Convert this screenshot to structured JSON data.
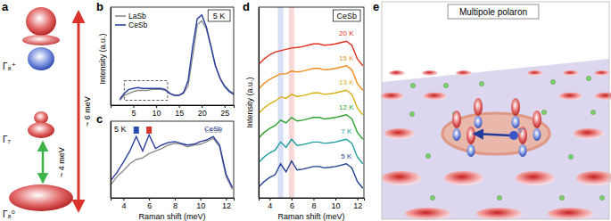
{
  "diagram_a": {
    "panel": "a",
    "levels": [
      "Γ₈⁺",
      "Γ₇",
      "Γ₈⁰"
    ],
    "arrows": [
      "~ 6 meV",
      "~ 4 meV"
    ]
  },
  "chart_data": [
    {
      "panel": "b",
      "type": "line",
      "title": "5 K",
      "y_label": "Intensity (a.u.)",
      "x": [
        2,
        3,
        4,
        5,
        6,
        7,
        8,
        9,
        10,
        11,
        12,
        13,
        14,
        15,
        16,
        17,
        18,
        19,
        20,
        21,
        22,
        23,
        24,
        25,
        26,
        27
      ],
      "series": [
        {
          "name": "LaSb",
          "color": "#8c8c8c",
          "values": [
            0.05,
            0.1,
            0.12,
            0.14,
            0.15,
            0.15,
            0.15,
            0.16,
            0.16,
            0.16,
            0.15,
            0.12,
            0.1,
            0.1,
            0.12,
            0.2,
            0.5,
            0.82,
            0.86,
            0.78,
            0.6,
            0.4,
            0.28,
            0.2,
            0.15,
            0.12
          ]
        },
        {
          "name": "CeSb",
          "color": "#2b3f9e",
          "values": [
            0.06,
            0.12,
            0.16,
            0.17,
            0.18,
            0.17,
            0.17,
            0.17,
            0.17,
            0.17,
            0.16,
            0.12,
            0.1,
            0.1,
            0.13,
            0.25,
            0.6,
            0.88,
            0.92,
            0.8,
            0.6,
            0.4,
            0.27,
            0.19,
            0.14,
            0.11
          ]
        }
      ],
      "xlim": [
        0,
        27
      ],
      "xticks": [
        5,
        10,
        15,
        20,
        25
      ],
      "ylim": [
        0,
        1
      ],
      "yticks": [],
      "tick_labels": "x",
      "legend": "upper left",
      "zoom_box": {
        "x": [
          3,
          12.5
        ],
        "y": [
          0.05,
          0.25
        ]
      }
    },
    {
      "panel": "c",
      "type": "line",
      "title": "5 K",
      "x_label": "Raman shift (meV)",
      "x": [
        3,
        3.5,
        4,
        4.5,
        5,
        5.5,
        6,
        6.5,
        7,
        7.5,
        8,
        8.5,
        9,
        9.5,
        10,
        10.5,
        11,
        11.5,
        12,
        12.5
      ],
      "series": [
        {
          "name": "LaSb",
          "color": "#8c8c8c",
          "values": [
            0.15,
            0.25,
            0.32,
            0.4,
            0.45,
            0.47,
            0.52,
            0.55,
            0.58,
            0.62,
            0.64,
            0.63,
            0.6,
            0.62,
            0.63,
            0.66,
            0.7,
            0.6,
            0.25,
            0.1
          ]
        },
        {
          "name": "CeSb",
          "color": "#2b3f9e",
          "values": [
            0.2,
            0.3,
            0.42,
            0.55,
            0.72,
            0.55,
            0.74,
            0.58,
            0.62,
            0.65,
            0.66,
            0.64,
            0.62,
            0.63,
            0.66,
            0.68,
            0.72,
            0.62,
            0.28,
            0.12
          ]
        }
      ],
      "xlim": [
        3,
        12.6
      ],
      "xticks": [
        4,
        6,
        8,
        10,
        12
      ],
      "ylim": [
        0,
        0.9
      ],
      "yticks": [],
      "tick_labels": "x",
      "peaks": {
        "x": [
          5,
          6
        ],
        "colors": [
          "#2b4fb0",
          "#d0392b"
        ]
      }
    },
    {
      "panel": "d",
      "type": "line",
      "title": "CeSb",
      "x_label": "Raman shift (meV)",
      "y_label": "Intensity (a.u.)",
      "x": [
        3,
        3.5,
        4,
        4.5,
        5,
        5.5,
        6,
        6.5,
        7,
        7.5,
        8,
        8.5,
        9,
        9.5,
        10,
        10.5,
        11,
        11.5,
        12,
        12.5
      ],
      "series": [
        {
          "name": "20 K",
          "color": "#e03020",
          "values": [
            4.9,
            5.1,
            5.25,
            5.35,
            5.4,
            5.45,
            5.5,
            5.52,
            5.55,
            5.6,
            5.65,
            5.65,
            5.6,
            5.62,
            5.65,
            5.7,
            5.75,
            5.6,
            5.1,
            4.85
          ]
        },
        {
          "name": "15 K",
          "color": "#f08c1e",
          "values": [
            4.0,
            4.2,
            4.35,
            4.45,
            4.55,
            4.55,
            4.65,
            4.62,
            4.65,
            4.7,
            4.75,
            4.75,
            4.7,
            4.72,
            4.75,
            4.8,
            4.85,
            4.7,
            4.2,
            3.95
          ]
        },
        {
          "name": "13 K",
          "color": "#d8b010",
          "values": [
            3.1,
            3.3,
            3.45,
            3.55,
            3.7,
            3.65,
            3.8,
            3.72,
            3.75,
            3.8,
            3.85,
            3.85,
            3.8,
            3.82,
            3.85,
            3.9,
            3.95,
            3.8,
            3.3,
            3.05
          ]
        },
        {
          "name": "12 K",
          "color": "#2ca02c",
          "values": [
            2.2,
            2.4,
            2.55,
            2.65,
            2.85,
            2.75,
            2.95,
            2.82,
            2.85,
            2.9,
            2.95,
            2.95,
            2.9,
            2.92,
            2.95,
            3.0,
            3.05,
            2.9,
            2.4,
            2.15
          ]
        },
        {
          "name": "7 K",
          "color": "#1f9e9e",
          "values": [
            1.3,
            1.5,
            1.65,
            1.75,
            2.05,
            1.85,
            2.15,
            1.92,
            1.95,
            2.0,
            2.05,
            2.05,
            2.0,
            2.02,
            2.05,
            2.1,
            2.15,
            2.0,
            1.5,
            1.25
          ]
        },
        {
          "name": "5 K",
          "color": "#1f3f8f",
          "values": [
            0.4,
            0.6,
            0.75,
            0.85,
            1.25,
            0.95,
            1.35,
            1.02,
            1.05,
            1.1,
            1.15,
            1.15,
            1.1,
            1.12,
            1.15,
            1.2,
            1.25,
            1.1,
            0.6,
            0.35
          ]
        }
      ],
      "xlim": [
        3,
        12.6
      ],
      "xticks": [
        4,
        6,
        8,
        10,
        12
      ],
      "ylim": [
        0,
        7
      ],
      "yticks": [],
      "tick_labels": "x",
      "bands": [
        [
          4.75,
          5.25
        ],
        [
          5.75,
          6.25
        ]
      ],
      "band_colors": [
        "#aab8e8",
        "#f0aaaa"
      ]
    }
  ],
  "diagram_e": {
    "panel": "e",
    "title": "Multipole polaron",
    "electron": "e⁻"
  }
}
